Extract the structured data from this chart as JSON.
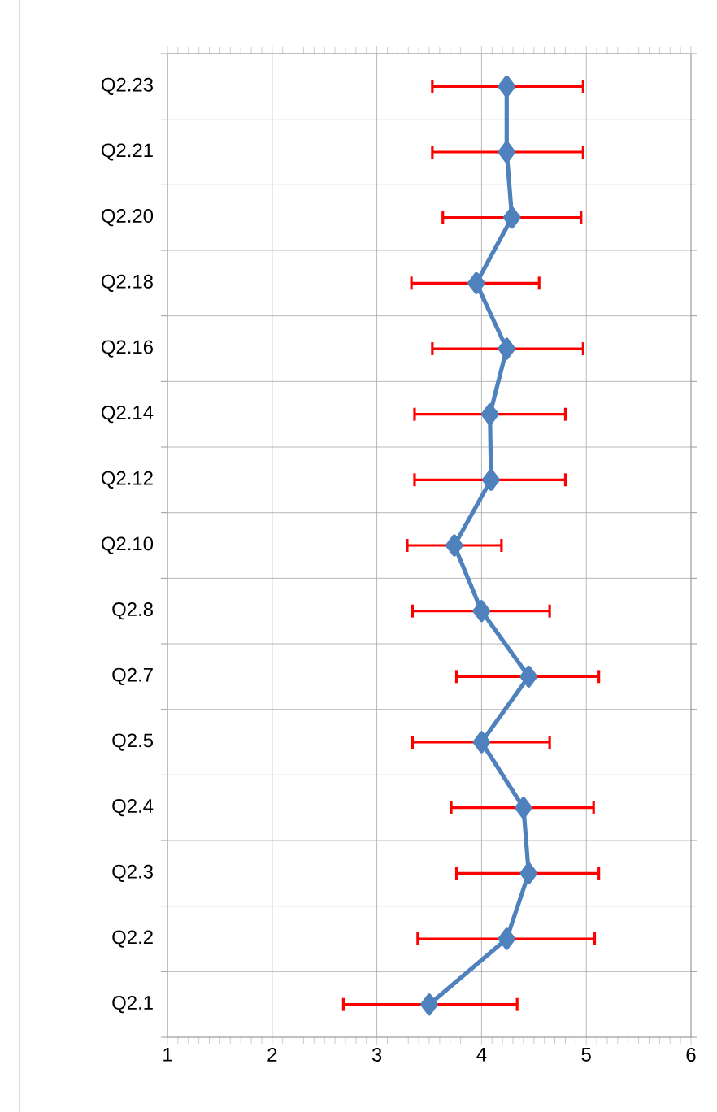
{
  "chart_data": {
    "type": "line",
    "orientation": "horizontal",
    "categories": [
      "Q2.23",
      "Q2.21",
      "Q2.20",
      "Q2.18",
      "Q2.16",
      "Q2.14",
      "Q2.12",
      "Q2.10",
      "Q2.8",
      "Q2.7",
      "Q2.5",
      "Q2.4",
      "Q2.3",
      "Q2.2",
      "Q2.1"
    ],
    "values": [
      4.24,
      4.24,
      4.29,
      3.95,
      4.24,
      4.08,
      4.09,
      3.74,
      4.0,
      4.45,
      4.0,
      4.4,
      4.45,
      4.24,
      3.5
    ],
    "errors": [
      [
        3.53,
        4.97
      ],
      [
        3.53,
        4.97
      ],
      [
        3.63,
        4.95
      ],
      [
        3.33,
        4.55
      ],
      [
        3.53,
        4.97
      ],
      [
        3.36,
        4.8
      ],
      [
        3.36,
        4.8
      ],
      [
        3.29,
        4.19
      ],
      [
        3.34,
        4.65
      ],
      [
        3.76,
        5.12
      ],
      [
        3.34,
        4.65
      ],
      [
        3.71,
        5.07
      ],
      [
        3.76,
        5.12
      ],
      [
        3.39,
        5.08
      ],
      [
        2.68,
        4.34
      ]
    ],
    "color": "#4f81bd",
    "xlim": [
      1,
      6
    ],
    "xticks": [
      1,
      2,
      3,
      4,
      5,
      6
    ],
    "grid": true,
    "marker": "diamond",
    "line_style": "solid"
  }
}
